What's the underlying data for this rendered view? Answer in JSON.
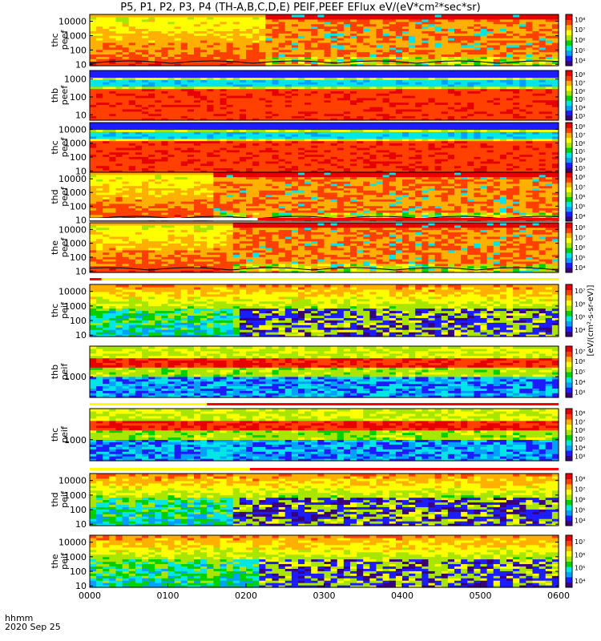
{
  "title": "P5, P1, P2, P3, P4 (TH-A,B,C,D,E) PEIF,PEEF EFlux eV/(eV*cm²*sec*sr)",
  "x_axis": {
    "label": "hhmm",
    "date": "2020 Sep 25",
    "ticks": [
      "0000",
      "0100",
      "0200",
      "0300",
      "0400",
      "0500",
      "0600"
    ]
  },
  "colorbar_label": "[eV/(cm²-s-sr-eV)]",
  "colors": {
    "rainbow": [
      "#3a007a",
      "#1c1cff",
      "#00a0ff",
      "#00e6e6",
      "#00d000",
      "#a8e600",
      "#ffff00",
      "#ffb000",
      "#ff4000",
      "#e60000"
    ],
    "white": "#ffffff",
    "bar_red": "#ff0000",
    "bar_yellow": "#ffff00"
  },
  "chart_data": [
    {
      "type": "heatmap",
      "ylabel": "thc\npeef",
      "yticks": [
        "10",
        "100",
        "1000",
        "10000"
      ],
      "ylog": true,
      "ylim": [
        8,
        30000
      ],
      "cbar_ticks": [
        "10⁴",
        "10⁵",
        "10⁶",
        "10⁷",
        "10⁸"
      ],
      "pattern": "peef_transition",
      "transition": 2.2,
      "has_line": true
    },
    {
      "type": "heatmap",
      "ylabel": "thb\npeef",
      "yticks": [
        "10",
        "100",
        "1000"
      ],
      "ylog": true,
      "ylim": [
        5,
        3000
      ],
      "cbar_ticks": [
        "10³",
        "10⁴",
        "10⁵",
        "10⁶",
        "10⁷",
        "10⁸"
      ],
      "pattern": "peef_plasmasheet"
    },
    {
      "type": "heatmap",
      "ylabel": "thc\npeef",
      "yticks": [
        "10",
        "100",
        "1000",
        "10000"
      ],
      "ylog": true,
      "ylim": [
        8,
        30000
      ],
      "cbar_ticks": [
        "10³",
        "10⁴",
        "10⁵",
        "10⁶",
        "10⁷",
        "10⁸"
      ],
      "pattern": "peef_plasmasheet2"
    },
    {
      "type": "heatmap",
      "ylabel": "thd\npeef",
      "yticks": [
        "10",
        "100",
        "1000",
        "10000"
      ],
      "ylog": true,
      "ylim": [
        8,
        30000
      ],
      "cbar_ticks": [
        "10⁴",
        "10⁵",
        "10⁶",
        "10⁷",
        "10⁸"
      ],
      "pattern": "peef_transition",
      "transition": 1.5,
      "has_line": true
    },
    {
      "type": "heatmap",
      "ylabel": "the\npeef",
      "yticks": [
        "10",
        "100",
        "1000",
        "10000"
      ],
      "ylog": true,
      "ylim": [
        8,
        30000
      ],
      "cbar_ticks": [
        "10⁴",
        "10⁵",
        "10⁶",
        "10⁷",
        "10⁸"
      ],
      "pattern": "peef_transition",
      "transition": 1.8,
      "has_line": true,
      "mode_bar": [
        {
          "from": 0.0,
          "to": 2.15,
          "color": "white"
        },
        {
          "from": 2.15,
          "to": 6.0,
          "color": "red"
        }
      ]
    },
    {
      "type": "heatmap",
      "ylabel": "thc\npeif",
      "yticks": [
        "10",
        "100",
        "1000",
        "10000"
      ],
      "ylog": true,
      "ylim": [
        8,
        30000
      ],
      "cbar_ticks": [
        "10⁴",
        "10⁵",
        "10⁶",
        "10⁷"
      ],
      "pattern": "peif_noisy",
      "transition": 1.9,
      "mode_bar": [
        {
          "from": 0.0,
          "to": 0.15,
          "color": "red"
        },
        {
          "from": 0.15,
          "to": 6.0,
          "color": "yellow"
        }
      ]
    },
    {
      "type": "heatmap",
      "ylabel": "thb\npeif",
      "yticks": [
        "1000"
      ],
      "ylog": true,
      "ylim": [
        100,
        30000
      ],
      "cbar_ticks": [
        "10³",
        "10⁴",
        "10⁵",
        "10⁶",
        "10⁷"
      ],
      "pattern": "peif_bands"
    },
    {
      "type": "heatmap",
      "ylabel": "thc\npeif",
      "yticks": [
        "1000"
      ],
      "ylog": true,
      "ylim": [
        100,
        30000
      ],
      "cbar_ticks": [
        "10³",
        "10⁴",
        "10⁵",
        "10⁶",
        "10⁷",
        "10⁸"
      ],
      "pattern": "peif_bands2",
      "mode_bar": [
        {
          "from": 0.0,
          "to": 1.5,
          "color": "yellow"
        },
        {
          "from": 1.5,
          "to": 6.0,
          "color": "red"
        }
      ]
    },
    {
      "type": "heatmap",
      "ylabel": "thd\npeif",
      "yticks": [
        "10",
        "100",
        "1000",
        "10000"
      ],
      "ylog": true,
      "ylim": [
        8,
        30000
      ],
      "cbar_ticks": [
        "10⁴",
        "10⁵",
        "10⁶",
        "10⁷",
        "10⁸"
      ],
      "pattern": "peif_noisy",
      "transition": 1.75,
      "mode_bar": [
        {
          "from": 0.0,
          "to": 2.05,
          "color": "yellow"
        },
        {
          "from": 2.05,
          "to": 6.0,
          "color": "red"
        }
      ]
    },
    {
      "type": "heatmap",
      "ylabel": "the\npeif",
      "yticks": [
        "10",
        "100",
        "1000",
        "10000"
      ],
      "ylog": true,
      "ylim": [
        8,
        30000
      ],
      "cbar_ticks": [
        "10⁴",
        "10⁵",
        "10⁶",
        "10⁷"
      ],
      "pattern": "peif_noisy",
      "transition": 2.1
    }
  ]
}
